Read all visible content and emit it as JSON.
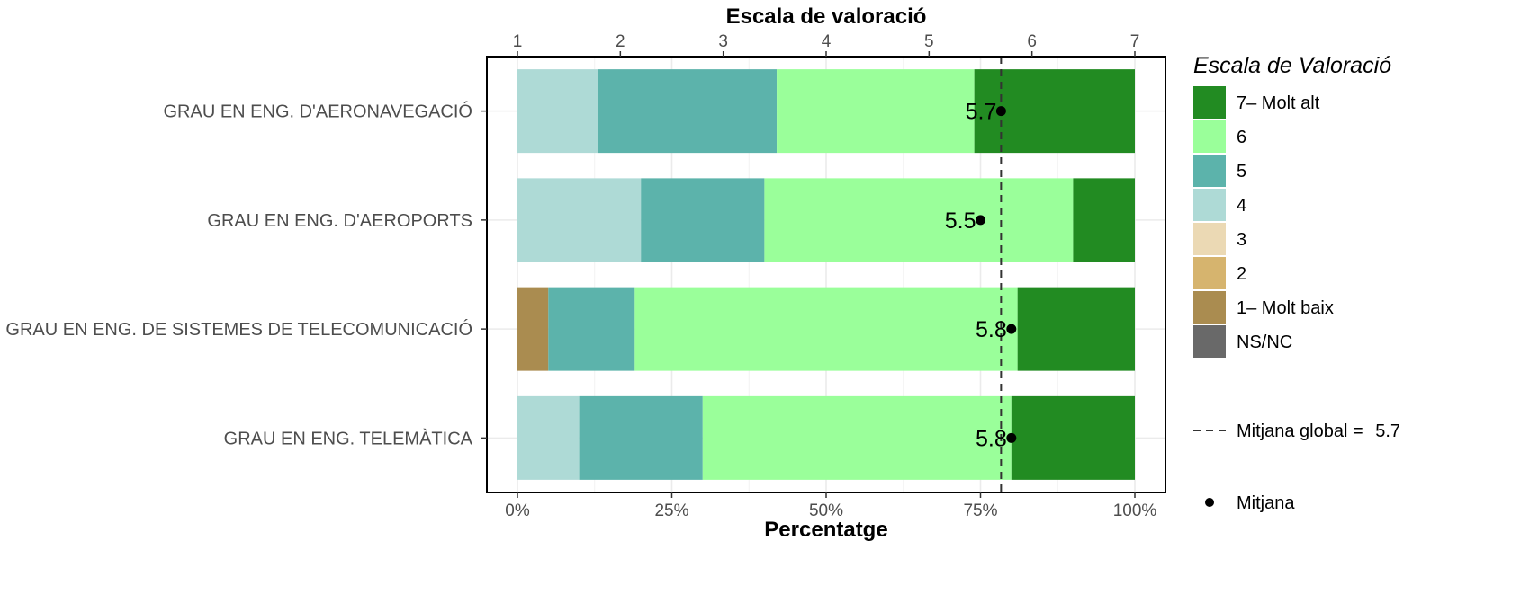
{
  "chart_data": {
    "type": "bar",
    "orientation": "horizontal",
    "stacked": "percent",
    "top_axis_title": "Escala de valoració",
    "top_axis_range": [
      1,
      7
    ],
    "top_axis_ticks": [
      "1",
      "2",
      "3",
      "4",
      "5",
      "6",
      "7"
    ],
    "xlabel": "Percentatge",
    "x_ticks": [
      "0%",
      "25%",
      "50%",
      "75%",
      "100%"
    ],
    "xlim": [
      0,
      100
    ],
    "grid": true,
    "legend_position": "right",
    "categories": [
      "GRAU EN ENG. D'AERONAVEGACIÓ",
      "GRAU EN ENG. D'AEROPORTS",
      "GRAU EN ENG. DE SISTEMES DE TELECOMUNICACIÓ",
      "GRAU EN ENG. TELEMÀTICA"
    ],
    "series": [
      {
        "name": "NS/NC",
        "color": "#696969",
        "values": [
          0,
          0,
          0,
          0
        ]
      },
      {
        "name": "1– Molt baix",
        "color": "#AA8C50",
        "values": [
          0,
          0,
          5,
          0
        ]
      },
      {
        "name": "2",
        "color": "#D6B46E",
        "values": [
          0,
          0,
          0,
          0
        ]
      },
      {
        "name": "3",
        "color": "#EBD9B4",
        "values": [
          0,
          0,
          0,
          0
        ]
      },
      {
        "name": "4",
        "color": "#AEDAD6",
        "values": [
          13,
          20,
          0,
          10
        ]
      },
      {
        "name": "5",
        "color": "#5CB3AB",
        "values": [
          29,
          20,
          14,
          20
        ]
      },
      {
        "name": "6",
        "color": "#9AFF9A",
        "values": [
          32,
          50,
          62,
          50
        ]
      },
      {
        "name": "7– Molt alt",
        "color": "#228B22",
        "values": [
          26,
          10,
          19,
          20
        ]
      }
    ],
    "means": [
      5.7,
      5.5,
      5.8,
      5.8
    ],
    "mean_labels": [
      "5.7",
      "5.5",
      "5.8",
      "5.8"
    ],
    "global_mean": 5.7,
    "legend_title": "Escala de Valoració",
    "legend_mean_global_label": "Mitjana global = ",
    "legend_mean_global_value": "5.7",
    "legend_mean_label": "Mitjana"
  }
}
